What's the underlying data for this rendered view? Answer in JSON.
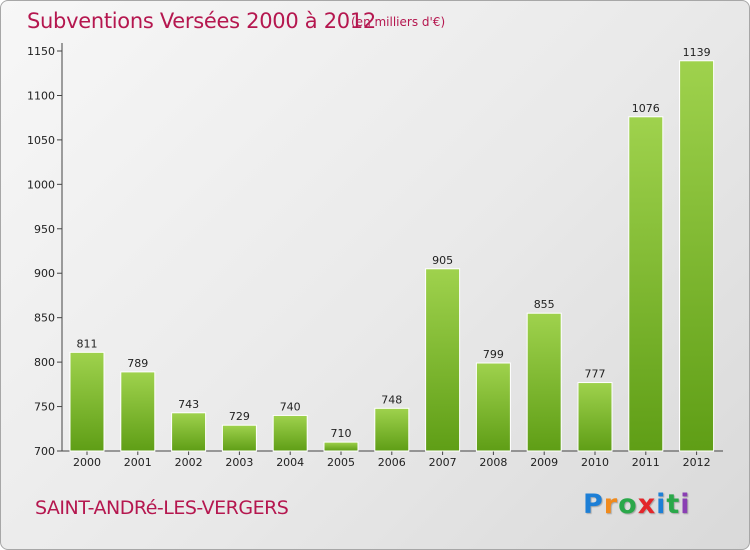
{
  "title": "Subventions Versées 2000 à 2012",
  "subtitle": "(en milliers d'€)",
  "commune": "SAINT-ANDRé-LES-VERGERS",
  "logo": {
    "letters": [
      "P",
      "r",
      "o",
      "x",
      "i",
      "t",
      "i"
    ],
    "colors": [
      "#1d7fd6",
      "#f08a1c",
      "#2aa84a",
      "#e3262b",
      "#1d7fd6",
      "#2aa84a",
      "#8a3fb3"
    ]
  },
  "colors": {
    "title": "#b5174f",
    "bar_light": "#9fd24d",
    "bar_dark": "#5f9e16"
  },
  "chart_data": {
    "type": "bar",
    "categories": [
      "2000",
      "2001",
      "2002",
      "2003",
      "2004",
      "2005",
      "2006",
      "2007",
      "2008",
      "2009",
      "2010",
      "2011",
      "2012"
    ],
    "values": [
      811,
      789,
      743,
      729,
      740,
      710,
      748,
      905,
      799,
      855,
      777,
      1076,
      1139
    ],
    "yticks": [
      "700",
      "750",
      "800",
      "850",
      "900",
      "950",
      "1000",
      "1050",
      "1100",
      "1150"
    ],
    "ylim": [
      700,
      1150
    ],
    "grid": false
  }
}
